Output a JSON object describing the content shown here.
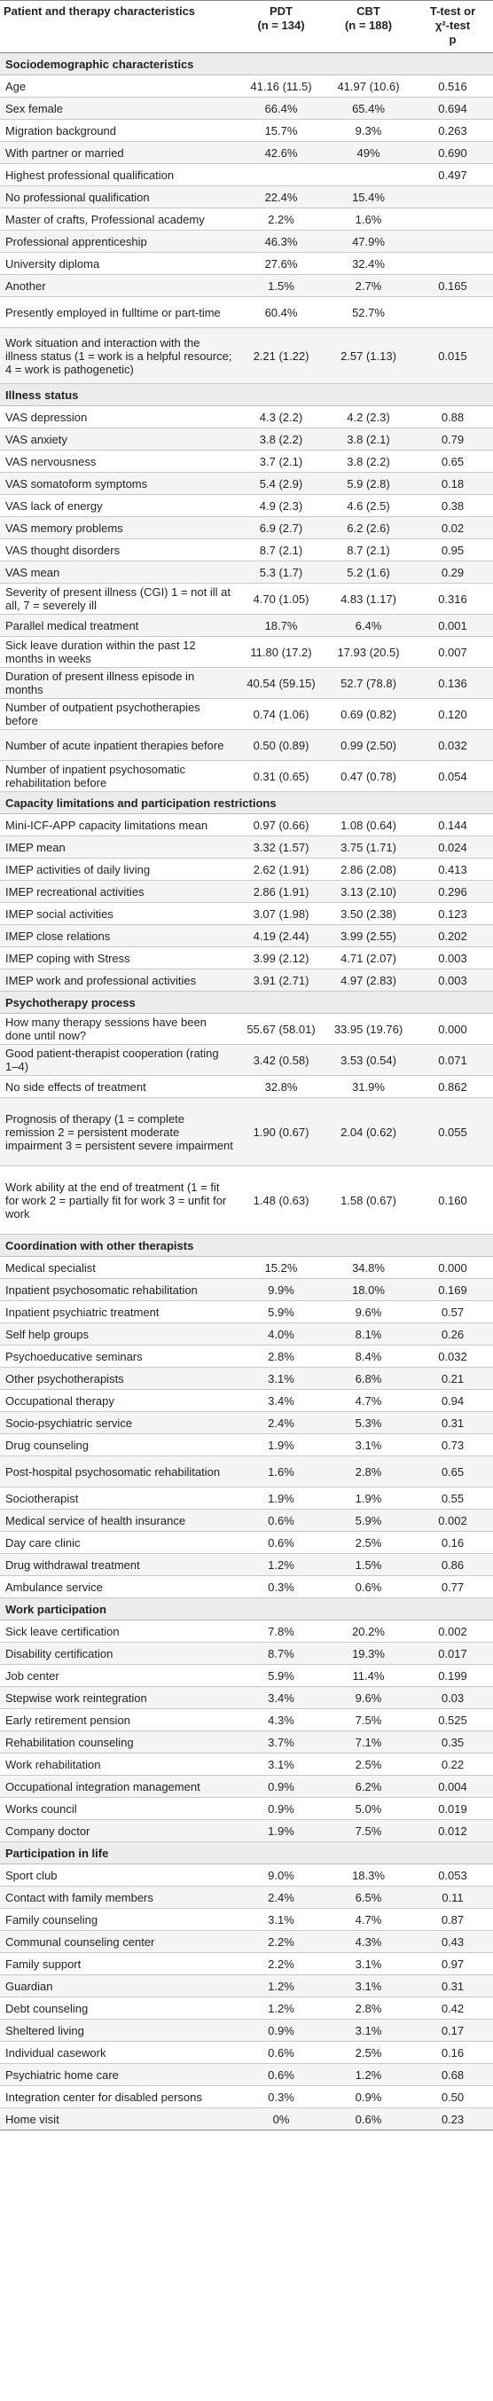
{
  "header": {
    "col0": "Patient and therapy characteristics",
    "col1_line1": "PDT",
    "col1_line2": "(n = 134)",
    "col2_line1": "CBT",
    "col2_line2": "(n = 188)",
    "col3_line1": "T-test or",
    "col3_line2": "χ²-test",
    "col3_line3": "p"
  },
  "rows": [
    {
      "type": "section",
      "label": "Sociodemographic characteristics"
    },
    {
      "type": "row",
      "label": "Age",
      "pdt": "41.16 (11.5)",
      "cbt": "41.97 (10.6)",
      "p": "0.516"
    },
    {
      "type": "row",
      "label": "Sex female",
      "pdt": "66.4%",
      "cbt": "65.4%",
      "p": "0.694"
    },
    {
      "type": "row",
      "label": "Migration background",
      "pdt": "15.7%",
      "cbt": "9.3%",
      "p": "0.263"
    },
    {
      "type": "row",
      "label": "With partner or married",
      "pdt": "42.6%",
      "cbt": "49%",
      "p": "0.690"
    },
    {
      "type": "row",
      "label": "Highest professional qualification",
      "pdt": "",
      "cbt": "",
      "p": "0.497"
    },
    {
      "type": "row",
      "label": "No professional qualification",
      "pdt": "22.4%",
      "cbt": "15.4%",
      "p": ""
    },
    {
      "type": "row",
      "label": "Master of crafts, Professional academy",
      "pdt": "2.2%",
      "cbt": "1.6%",
      "p": ""
    },
    {
      "type": "row",
      "label": "Professional apprenticeship",
      "pdt": "46.3%",
      "cbt": "47.9%",
      "p": ""
    },
    {
      "type": "row",
      "label": "University diploma",
      "pdt": "27.6%",
      "cbt": "32.4%",
      "p": ""
    },
    {
      "type": "row",
      "label": "Another",
      "pdt": "1.5%",
      "cbt": "2.7%",
      "p": "0.165"
    },
    {
      "type": "row",
      "size": "tall2",
      "label": "Presently employed in fulltime or part-time",
      "pdt": "60.4%",
      "cbt": "52.7%",
      "p": ""
    },
    {
      "type": "row",
      "size": "tall4",
      "label": "Work situation and interaction with the illness status (1 = work is a helpful resource; 4 = work is pathogenetic)",
      "pdt": "2.21 (1.22)",
      "cbt": "2.57 (1.13)",
      "p": "0.015"
    },
    {
      "type": "section",
      "label": "Illness status"
    },
    {
      "type": "row",
      "label": "VAS depression",
      "pdt": "4.3 (2.2)",
      "cbt": "4.2 (2.3)",
      "p": "0.88"
    },
    {
      "type": "row",
      "label": "VAS anxiety",
      "pdt": "3.8 (2.2)",
      "cbt": "3.8 (2.1)",
      "p": "0.79"
    },
    {
      "type": "row",
      "label": "VAS nervousness",
      "pdt": "3.7 (2.1)",
      "cbt": "3.8 (2.2)",
      "p": "0.65"
    },
    {
      "type": "row",
      "label": "VAS somatoform symptoms",
      "pdt": "5.4 (2.9)",
      "cbt": "5.9 (2.8)",
      "p": "0.18"
    },
    {
      "type": "row",
      "label": "VAS lack of energy",
      "pdt": "4.9 (2.3)",
      "cbt": "4.6 (2.5)",
      "p": "0.38"
    },
    {
      "type": "row",
      "label": "VAS memory problems",
      "pdt": "6.9 (2.7)",
      "cbt": "6.2 (2.6)",
      "p": "0.02"
    },
    {
      "type": "row",
      "label": "VAS thought disorders",
      "pdt": "8.7 (2.1)",
      "cbt": "8.7 (2.1)",
      "p": "0.95"
    },
    {
      "type": "row",
      "label": "VAS mean",
      "pdt": "5.3 (1.7)",
      "cbt": "5.2 (1.6)",
      "p": "0.29"
    },
    {
      "type": "row",
      "size": "tall2",
      "label": "Severity of present illness (CGI) 1 = not ill at all, 7 = severely ill",
      "pdt": "4.70 (1.05)",
      "cbt": "4.83 (1.17)",
      "p": "0.316"
    },
    {
      "type": "row",
      "label": "Parallel medical treatment",
      "pdt": "18.7%",
      "cbt": "6.4%",
      "p": "0.001"
    },
    {
      "type": "row",
      "size": "tall2",
      "label": "Sick leave duration within the past 12 months in weeks",
      "pdt": "11.80 (17.2)",
      "cbt": "17.93 (20.5)",
      "p": "0.007"
    },
    {
      "type": "row",
      "size": "tall2",
      "label": "Duration of present illness episode in months",
      "pdt": "40.54 (59.15)",
      "cbt": "52.7 (78.8)",
      "p": "0.136"
    },
    {
      "type": "row",
      "size": "tall2",
      "label": "Number of outpatient psychotherapies before",
      "pdt": "0.74 (1.06)",
      "cbt": "0.69 (0.82)",
      "p": "0.120"
    },
    {
      "type": "row",
      "size": "tall2",
      "label": "Number of acute inpatient therapies before",
      "pdt": "0.50 (0.89)",
      "cbt": "0.99 (2.50)",
      "p": "0.032"
    },
    {
      "type": "row",
      "size": "tall2",
      "label": "Number of inpatient psychosomatic rehabilitation before",
      "pdt": "0.31 (0.65)",
      "cbt": "0.47 (0.78)",
      "p": "0.054"
    },
    {
      "type": "section",
      "label": "Capacity limitations and participation restrictions"
    },
    {
      "type": "row",
      "label": "Mini-ICF-APP capacity limitations mean",
      "pdt": "0.97 (0.66)",
      "cbt": "1.08 (0.64)",
      "p": "0.144"
    },
    {
      "type": "row",
      "label": "IMEP mean",
      "pdt": "3.32 (1.57)",
      "cbt": "3.75 (1.71)",
      "p": "0.024"
    },
    {
      "type": "row",
      "label": "IMEP activities of daily living",
      "pdt": "2.62 (1.91)",
      "cbt": "2.86 (2.08)",
      "p": "0.413"
    },
    {
      "type": "row",
      "label": "IMEP recreational activities",
      "pdt": "2.86 (1.91)",
      "cbt": "3.13 (2.10)",
      "p": "0.296"
    },
    {
      "type": "row",
      "label": "IMEP social activities",
      "pdt": "3.07 (1.98)",
      "cbt": "3.50 (2.38)",
      "p": "0.123"
    },
    {
      "type": "row",
      "label": "IMEP close relations",
      "pdt": "4.19 (2.44)",
      "cbt": "3.99 (2.55)",
      "p": "0.202"
    },
    {
      "type": "row",
      "label": "IMEP coping with Stress",
      "pdt": "3.99 (2.12)",
      "cbt": "4.71 (2.07)",
      "p": "0.003"
    },
    {
      "type": "row",
      "label": "IMEP work and professional activities",
      "pdt": "3.91 (2.71)",
      "cbt": "4.97 (2.83)",
      "p": "0.003"
    },
    {
      "type": "section",
      "label": "Psychotherapy process"
    },
    {
      "type": "row",
      "size": "tall2",
      "label": "How many therapy sessions have been done until now?",
      "pdt": "55.67 (58.01)",
      "cbt": "33.95 (19.76)",
      "p": "0.000"
    },
    {
      "type": "row",
      "size": "tall2",
      "label": "Good patient-therapist cooperation (rating 1–4)",
      "pdt": "3.42 (0.58)",
      "cbt": "3.53 (0.54)",
      "p": "0.071"
    },
    {
      "type": "row",
      "label": "No side effects of treatment",
      "pdt": "32.8%",
      "cbt": "31.9%",
      "p": "0.862"
    },
    {
      "type": "row",
      "size": "tall5",
      "label": "Prognosis of therapy (1 = complete remission 2 = persistent moderate impairment 3 = persistent severe impairment",
      "pdt": "1.90 (0.67)",
      "cbt": "2.04 (0.62)",
      "p": "0.055"
    },
    {
      "type": "row",
      "size": "tall5",
      "label": "Work ability at the end of treatment (1 = fit for work 2 = partially fit for work 3 = unfit for work",
      "pdt": "1.48 (0.63)",
      "cbt": "1.58 (0.67)",
      "p": "0.160"
    },
    {
      "type": "section",
      "label": "Coordination with other therapists"
    },
    {
      "type": "row",
      "label": "Medical specialist",
      "pdt": "15.2%",
      "cbt": "34.8%",
      "p": "0.000"
    },
    {
      "type": "row",
      "label": "Inpatient psychosomatic rehabilitation",
      "pdt": "9.9%",
      "cbt": "18.0%",
      "p": "0.169"
    },
    {
      "type": "row",
      "label": "Inpatient psychiatric treatment",
      "pdt": "5.9%",
      "cbt": "9.6%",
      "p": "0.57"
    },
    {
      "type": "row",
      "label": "Self help groups",
      "pdt": "4.0%",
      "cbt": "8.1%",
      "p": "0.26"
    },
    {
      "type": "row",
      "label": "Psychoeducative seminars",
      "pdt": "2.8%",
      "cbt": "8.4%",
      "p": "0.032"
    },
    {
      "type": "row",
      "label": "Other psychotherapists",
      "pdt": "3.1%",
      "cbt": "6.8%",
      "p": "0.21"
    },
    {
      "type": "row",
      "label": "Occupational therapy",
      "pdt": "3.4%",
      "cbt": "4.7%",
      "p": "0.94"
    },
    {
      "type": "row",
      "label": "Socio-psychiatric service",
      "pdt": "2.4%",
      "cbt": "5.3%",
      "p": "0.31"
    },
    {
      "type": "row",
      "label": "Drug counseling",
      "pdt": "1.9%",
      "cbt": "3.1%",
      "p": "0.73"
    },
    {
      "type": "row",
      "size": "tall2",
      "label": "Post-hospital psychosomatic rehabilitation",
      "pdt": "1.6%",
      "cbt": "2.8%",
      "p": "0.65"
    },
    {
      "type": "row",
      "label": "Sociotherapist",
      "pdt": "1.9%",
      "cbt": "1.9%",
      "p": "0.55"
    },
    {
      "type": "row",
      "label": "Medical service of health insurance",
      "pdt": "0.6%",
      "cbt": "5.9%",
      "p": "0.002"
    },
    {
      "type": "row",
      "label": "Day care clinic",
      "pdt": "0.6%",
      "cbt": "2.5%",
      "p": "0.16"
    },
    {
      "type": "row",
      "label": "Drug withdrawal treatment",
      "pdt": "1.2%",
      "cbt": "1.5%",
      "p": "0.86"
    },
    {
      "type": "row",
      "label": "Ambulance service",
      "pdt": "0.3%",
      "cbt": "0.6%",
      "p": "0.77"
    },
    {
      "type": "section",
      "label": "Work participation"
    },
    {
      "type": "row",
      "label": "Sick leave certification",
      "pdt": "7.8%",
      "cbt": "20.2%",
      "p": "0.002"
    },
    {
      "type": "row",
      "label": "Disability certification",
      "pdt": "8.7%",
      "cbt": "19.3%",
      "p": "0.017"
    },
    {
      "type": "row",
      "label": "Job center",
      "pdt": "5.9%",
      "cbt": "11.4%",
      "p": "0.199"
    },
    {
      "type": "row",
      "label": "Stepwise work reintegration",
      "pdt": "3.4%",
      "cbt": "9.6%",
      "p": "0.03"
    },
    {
      "type": "row",
      "label": "Early retirement pension",
      "pdt": "4.3%",
      "cbt": "7.5%",
      "p": "0.525"
    },
    {
      "type": "row",
      "label": "Rehabilitation counseling",
      "pdt": "3.7%",
      "cbt": "7.1%",
      "p": "0.35"
    },
    {
      "type": "row",
      "label": "Work rehabilitation",
      "pdt": "3.1%",
      "cbt": "2.5%",
      "p": "0.22"
    },
    {
      "type": "row",
      "label": "Occupational integration management",
      "pdt": "0.9%",
      "cbt": "6.2%",
      "p": "0.004"
    },
    {
      "type": "row",
      "label": "Works council",
      "pdt": "0.9%",
      "cbt": "5.0%",
      "p": "0.019"
    },
    {
      "type": "row",
      "label": "Company doctor",
      "pdt": "1.9%",
      "cbt": "7.5%",
      "p": "0.012"
    },
    {
      "type": "section",
      "label": "Participation in life"
    },
    {
      "type": "row",
      "label": "Sport club",
      "pdt": "9.0%",
      "cbt": "18.3%",
      "p": "0.053"
    },
    {
      "type": "row",
      "label": "Contact with family members",
      "pdt": "2.4%",
      "cbt": "6.5%",
      "p": "0.11"
    },
    {
      "type": "row",
      "label": "Family counseling",
      "pdt": "3.1%",
      "cbt": "4.7%",
      "p": "0.87"
    },
    {
      "type": "row",
      "label": "Communal counseling center",
      "pdt": "2.2%",
      "cbt": "4.3%",
      "p": "0.43"
    },
    {
      "type": "row",
      "label": "Family support",
      "pdt": "2.2%",
      "cbt": "3.1%",
      "p": "0.97"
    },
    {
      "type": "row",
      "label": "Guardian",
      "pdt": "1.2%",
      "cbt": "3.1%",
      "p": "0.31"
    },
    {
      "type": "row",
      "label": "Debt counseling",
      "pdt": "1.2%",
      "cbt": "2.8%",
      "p": "0.42"
    },
    {
      "type": "row",
      "label": "Sheltered living",
      "pdt": "0.9%",
      "cbt": "3.1%",
      "p": "0.17"
    },
    {
      "type": "row",
      "label": "Individual casework",
      "pdt": "0.6%",
      "cbt": "2.5%",
      "p": "0.16"
    },
    {
      "type": "row",
      "label": "Psychiatric home care",
      "pdt": "0.6%",
      "cbt": "1.2%",
      "p": "0.68"
    },
    {
      "type": "row",
      "label": "Integration center for disabled persons",
      "pdt": "0.3%",
      "cbt": "0.9%",
      "p": "0.50"
    },
    {
      "type": "row",
      "label": "Home visit",
      "pdt": "0%",
      "cbt": "0.6%",
      "p": "0.23"
    }
  ]
}
